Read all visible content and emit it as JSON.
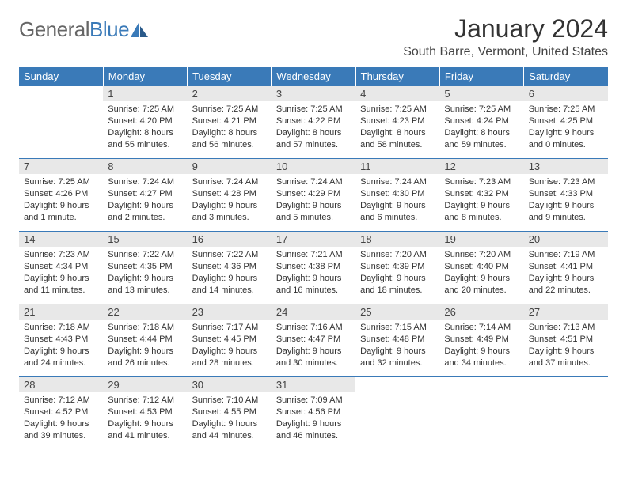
{
  "logo": {
    "word1": "General",
    "word2": "Blue"
  },
  "title": "January 2024",
  "location": "South Barre, Vermont, United States",
  "colors": {
    "header_bg": "#3a7ab8",
    "header_text": "#ffffff",
    "daynum_bg": "#e8e8e8",
    "border": "#3a7ab8",
    "logo_gray": "#666666",
    "logo_blue": "#3a7ab8"
  },
  "weekdays": [
    "Sunday",
    "Monday",
    "Tuesday",
    "Wednesday",
    "Thursday",
    "Friday",
    "Saturday"
  ],
  "weeks": [
    [
      null,
      {
        "n": "1",
        "sr": "Sunrise: 7:25 AM",
        "ss": "Sunset: 4:20 PM",
        "dl": "Daylight: 8 hours and 55 minutes."
      },
      {
        "n": "2",
        "sr": "Sunrise: 7:25 AM",
        "ss": "Sunset: 4:21 PM",
        "dl": "Daylight: 8 hours and 56 minutes."
      },
      {
        "n": "3",
        "sr": "Sunrise: 7:25 AM",
        "ss": "Sunset: 4:22 PM",
        "dl": "Daylight: 8 hours and 57 minutes."
      },
      {
        "n": "4",
        "sr": "Sunrise: 7:25 AM",
        "ss": "Sunset: 4:23 PM",
        "dl": "Daylight: 8 hours and 58 minutes."
      },
      {
        "n": "5",
        "sr": "Sunrise: 7:25 AM",
        "ss": "Sunset: 4:24 PM",
        "dl": "Daylight: 8 hours and 59 minutes."
      },
      {
        "n": "6",
        "sr": "Sunrise: 7:25 AM",
        "ss": "Sunset: 4:25 PM",
        "dl": "Daylight: 9 hours and 0 minutes."
      }
    ],
    [
      {
        "n": "7",
        "sr": "Sunrise: 7:25 AM",
        "ss": "Sunset: 4:26 PM",
        "dl": "Daylight: 9 hours and 1 minute."
      },
      {
        "n": "8",
        "sr": "Sunrise: 7:24 AM",
        "ss": "Sunset: 4:27 PM",
        "dl": "Daylight: 9 hours and 2 minutes."
      },
      {
        "n": "9",
        "sr": "Sunrise: 7:24 AM",
        "ss": "Sunset: 4:28 PM",
        "dl": "Daylight: 9 hours and 3 minutes."
      },
      {
        "n": "10",
        "sr": "Sunrise: 7:24 AM",
        "ss": "Sunset: 4:29 PM",
        "dl": "Daylight: 9 hours and 5 minutes."
      },
      {
        "n": "11",
        "sr": "Sunrise: 7:24 AM",
        "ss": "Sunset: 4:30 PM",
        "dl": "Daylight: 9 hours and 6 minutes."
      },
      {
        "n": "12",
        "sr": "Sunrise: 7:23 AM",
        "ss": "Sunset: 4:32 PM",
        "dl": "Daylight: 9 hours and 8 minutes."
      },
      {
        "n": "13",
        "sr": "Sunrise: 7:23 AM",
        "ss": "Sunset: 4:33 PM",
        "dl": "Daylight: 9 hours and 9 minutes."
      }
    ],
    [
      {
        "n": "14",
        "sr": "Sunrise: 7:23 AM",
        "ss": "Sunset: 4:34 PM",
        "dl": "Daylight: 9 hours and 11 minutes."
      },
      {
        "n": "15",
        "sr": "Sunrise: 7:22 AM",
        "ss": "Sunset: 4:35 PM",
        "dl": "Daylight: 9 hours and 13 minutes."
      },
      {
        "n": "16",
        "sr": "Sunrise: 7:22 AM",
        "ss": "Sunset: 4:36 PM",
        "dl": "Daylight: 9 hours and 14 minutes."
      },
      {
        "n": "17",
        "sr": "Sunrise: 7:21 AM",
        "ss": "Sunset: 4:38 PM",
        "dl": "Daylight: 9 hours and 16 minutes."
      },
      {
        "n": "18",
        "sr": "Sunrise: 7:20 AM",
        "ss": "Sunset: 4:39 PM",
        "dl": "Daylight: 9 hours and 18 minutes."
      },
      {
        "n": "19",
        "sr": "Sunrise: 7:20 AM",
        "ss": "Sunset: 4:40 PM",
        "dl": "Daylight: 9 hours and 20 minutes."
      },
      {
        "n": "20",
        "sr": "Sunrise: 7:19 AM",
        "ss": "Sunset: 4:41 PM",
        "dl": "Daylight: 9 hours and 22 minutes."
      }
    ],
    [
      {
        "n": "21",
        "sr": "Sunrise: 7:18 AM",
        "ss": "Sunset: 4:43 PM",
        "dl": "Daylight: 9 hours and 24 minutes."
      },
      {
        "n": "22",
        "sr": "Sunrise: 7:18 AM",
        "ss": "Sunset: 4:44 PM",
        "dl": "Daylight: 9 hours and 26 minutes."
      },
      {
        "n": "23",
        "sr": "Sunrise: 7:17 AM",
        "ss": "Sunset: 4:45 PM",
        "dl": "Daylight: 9 hours and 28 minutes."
      },
      {
        "n": "24",
        "sr": "Sunrise: 7:16 AM",
        "ss": "Sunset: 4:47 PM",
        "dl": "Daylight: 9 hours and 30 minutes."
      },
      {
        "n": "25",
        "sr": "Sunrise: 7:15 AM",
        "ss": "Sunset: 4:48 PM",
        "dl": "Daylight: 9 hours and 32 minutes."
      },
      {
        "n": "26",
        "sr": "Sunrise: 7:14 AM",
        "ss": "Sunset: 4:49 PM",
        "dl": "Daylight: 9 hours and 34 minutes."
      },
      {
        "n": "27",
        "sr": "Sunrise: 7:13 AM",
        "ss": "Sunset: 4:51 PM",
        "dl": "Daylight: 9 hours and 37 minutes."
      }
    ],
    [
      {
        "n": "28",
        "sr": "Sunrise: 7:12 AM",
        "ss": "Sunset: 4:52 PM",
        "dl": "Daylight: 9 hours and 39 minutes."
      },
      {
        "n": "29",
        "sr": "Sunrise: 7:12 AM",
        "ss": "Sunset: 4:53 PM",
        "dl": "Daylight: 9 hours and 41 minutes."
      },
      {
        "n": "30",
        "sr": "Sunrise: 7:10 AM",
        "ss": "Sunset: 4:55 PM",
        "dl": "Daylight: 9 hours and 44 minutes."
      },
      {
        "n": "31",
        "sr": "Sunrise: 7:09 AM",
        "ss": "Sunset: 4:56 PM",
        "dl": "Daylight: 9 hours and 46 minutes."
      },
      null,
      null,
      null
    ]
  ]
}
